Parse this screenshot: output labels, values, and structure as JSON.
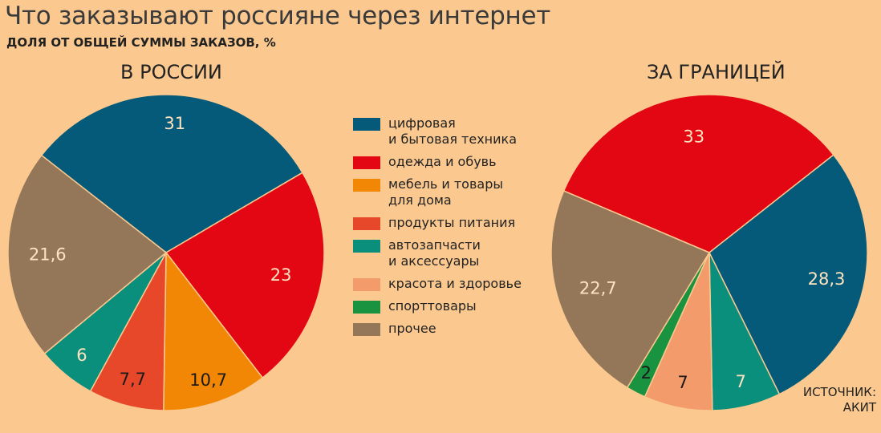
{
  "header": {
    "title": "Что заказывают россияне через интернет",
    "subtitle": "ДОЛЯ ОТ ОБЩЕЙ СУММЫ ЗАКАЗОВ, %"
  },
  "source": {
    "line1": "ИСТОЧНИК:",
    "line2": "АКИТ"
  },
  "legend": [
    {
      "label": "цифровая\nи бытовая техника",
      "color": "#045a78"
    },
    {
      "label": "одежда и обувь",
      "color": "#e30613"
    },
    {
      "label": "мебель и товары\nдля дома",
      "color": "#f28705"
    },
    {
      "label": "продукты питания",
      "color": "#e8482a"
    },
    {
      "label": "автозапчасти\nи аксессуары",
      "color": "#0b8f7d"
    },
    {
      "label": "красота и здоровье",
      "color": "#f39b6b"
    },
    {
      "label": "спорттовары",
      "color": "#1a9340"
    },
    {
      "label": "прочее",
      "color": "#947659"
    }
  ],
  "chart_data": [
    {
      "type": "pie",
      "title": "В РОССИИ",
      "slices": [
        {
          "category": "цифровая и бытовая техника",
          "value": 31,
          "label": "31",
          "color": "#045a78"
        },
        {
          "category": "одежда и обувь",
          "value": 23,
          "label": "23",
          "color": "#e30613"
        },
        {
          "category": "мебель и товары для дома",
          "value": 10.7,
          "label": "10,7",
          "color": "#f28705"
        },
        {
          "category": "продукты питания",
          "value": 7.7,
          "label": "7,7",
          "color": "#e8482a"
        },
        {
          "category": "автозапчасти и аксессуары",
          "value": 6,
          "label": "6",
          "color": "#0b8f7d"
        },
        {
          "category": "прочее",
          "value": 21.6,
          "label": "21,6",
          "color": "#947659"
        }
      ]
    },
    {
      "type": "pie",
      "title": "ЗА ГРАНИЦЕЙ",
      "slices": [
        {
          "category": "одежда и обувь",
          "value": 33,
          "label": "33",
          "color": "#e30613"
        },
        {
          "category": "цифровая и бытовая техника",
          "value": 28.3,
          "label": "28,3",
          "color": "#045a78"
        },
        {
          "category": "автозапчасти и аксессуары",
          "value": 7,
          "label": "7",
          "color": "#0b8f7d"
        },
        {
          "category": "красота и здоровье",
          "value": 7,
          "label": "7",
          "color": "#f39b6b"
        },
        {
          "category": "спорттовары",
          "value": 2,
          "label": "2",
          "color": "#1a9340"
        },
        {
          "category": "прочее",
          "value": 22.7,
          "label": "22,7",
          "color": "#947659"
        }
      ]
    }
  ]
}
